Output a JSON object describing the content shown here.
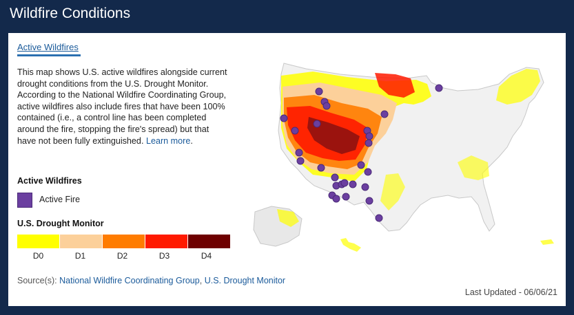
{
  "header": {
    "title": "Wildfire Conditions"
  },
  "tab": {
    "label": "Active Wildfires"
  },
  "description": {
    "text": "This map shows U.S. active wildfires alongside current drought conditions from the U.S. Drought Monitor. According to the National Wildfire Coordinating Group, active wildfires also include fires that have been 100% contained (i.e., a control line has been completed around the fire, stopping the fire's spread) but that have not been fully extinguished.",
    "learn_more": "Learn more",
    "period": "."
  },
  "legend": {
    "fires_heading": "Active Wildfires",
    "fire_label": "Active Fire",
    "drought_heading": "U.S. Drought Monitor",
    "categories": [
      {
        "label": "D0",
        "color": "#ffff00"
      },
      {
        "label": "D1",
        "color": "#fcd09a"
      },
      {
        "label": "D2",
        "color": "#ff7c00"
      },
      {
        "label": "D3",
        "color": "#ff1a00"
      },
      {
        "label": "D4",
        "color": "#6e0000"
      }
    ],
    "fire_color": "#6b3fa0"
  },
  "source": {
    "prefix": "Source(s):",
    "link1": "National Wildfire Coordinating Group",
    "separator": ",",
    "link2": "U.S. Drought Monitor"
  },
  "footer": {
    "last_updated": "Last Updated  -  06/06/21"
  }
}
